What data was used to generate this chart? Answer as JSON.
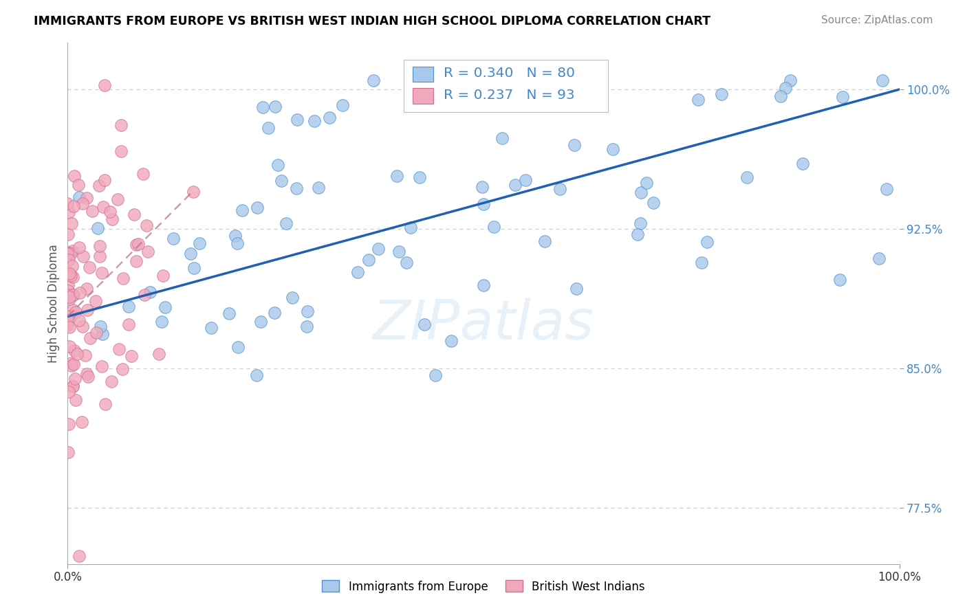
{
  "title": "IMMIGRANTS FROM EUROPE VS BRITISH WEST INDIAN HIGH SCHOOL DIPLOMA CORRELATION CHART",
  "source": "Source: ZipAtlas.com",
  "ylabel": "High School Diploma",
  "ytick_labels": [
    "77.5%",
    "85.0%",
    "92.5%",
    "100.0%"
  ],
  "ytick_values": [
    0.775,
    0.85,
    0.925,
    1.0
  ],
  "xlim": [
    0.0,
    1.0
  ],
  "ylim": [
    0.745,
    1.025
  ],
  "legend_blue_r": "0.340",
  "legend_blue_n": "80",
  "legend_pink_r": "0.237",
  "legend_pink_n": "93",
  "blue_fill": "#A8C8EC",
  "blue_edge": "#5090CC",
  "pink_fill": "#F0A8BC",
  "pink_edge": "#D07090",
  "blue_line_color": "#2060B0",
  "pink_line_color": "#C07080",
  "watermark_color": "#5090CC",
  "watermark_alpha": 0.13,
  "grid_color": "#CCCCCC",
  "ytick_color": "#4488CC",
  "title_fontsize": 12.5,
  "source_fontsize": 11,
  "scatter_size": 160,
  "blue_line_start_x": 0.0,
  "blue_line_start_y": 0.878,
  "blue_line_end_x": 1.0,
  "blue_line_end_y": 1.0,
  "pink_line_start_x": 0.0,
  "pink_line_start_y": 0.878,
  "pink_line_end_x": 0.15,
  "pink_line_end_y": 0.945
}
